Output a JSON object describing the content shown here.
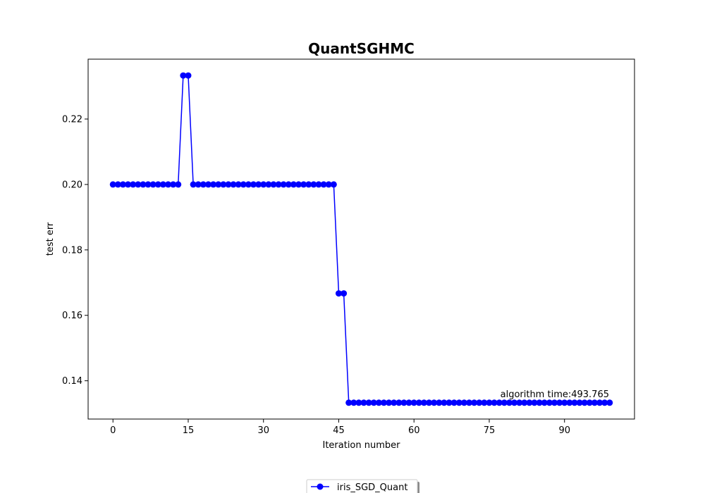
{
  "chart_data": {
    "type": "line",
    "title": "QuantSGHMC",
    "xlabel": "Iteration number",
    "ylabel": "test err",
    "xlim": [
      -4.95,
      103.95
    ],
    "ylim": [
      0.1283,
      0.2383
    ],
    "xticks": [
      0,
      15,
      30,
      45,
      60,
      75,
      90
    ],
    "yticks": [
      0.14,
      0.16,
      0.18,
      0.2,
      0.22
    ],
    "ytick_labels": [
      "0.14",
      "0.16",
      "0.18",
      "0.20",
      "0.22"
    ],
    "grid": false,
    "legend": {
      "placement": "bottom-center",
      "entries": [
        "iris_SGD_Quant"
      ]
    },
    "series": [
      {
        "name": "iris_SGD_Quant",
        "color": "#0000ff",
        "marker": "circle",
        "x": [
          0,
          1,
          2,
          3,
          4,
          5,
          6,
          7,
          8,
          9,
          10,
          11,
          12,
          13,
          14,
          15,
          16,
          17,
          18,
          19,
          20,
          21,
          22,
          23,
          24,
          25,
          26,
          27,
          28,
          29,
          30,
          31,
          32,
          33,
          34,
          35,
          36,
          37,
          38,
          39,
          40,
          41,
          42,
          43,
          44,
          45,
          46,
          47,
          48,
          49,
          50,
          51,
          52,
          53,
          54,
          55,
          56,
          57,
          58,
          59,
          60,
          61,
          62,
          63,
          64,
          65,
          66,
          67,
          68,
          69,
          70,
          71,
          72,
          73,
          74,
          75,
          76,
          77,
          78,
          79,
          80,
          81,
          82,
          83,
          84,
          85,
          86,
          87,
          88,
          89,
          90,
          91,
          92,
          93,
          94,
          95,
          96,
          97,
          98,
          99
        ],
        "y": [
          0.2,
          0.2,
          0.2,
          0.2,
          0.2,
          0.2,
          0.2,
          0.2,
          0.2,
          0.2,
          0.2,
          0.2,
          0.2,
          0.2,
          0.2333,
          0.2333,
          0.2,
          0.2,
          0.2,
          0.2,
          0.2,
          0.2,
          0.2,
          0.2,
          0.2,
          0.2,
          0.2,
          0.2,
          0.2,
          0.2,
          0.2,
          0.2,
          0.2,
          0.2,
          0.2,
          0.2,
          0.2,
          0.2,
          0.2,
          0.2,
          0.2,
          0.2,
          0.2,
          0.2,
          0.2,
          0.1667,
          0.1667,
          0.1333,
          0.1333,
          0.1333,
          0.1333,
          0.1333,
          0.1333,
          0.1333,
          0.1333,
          0.1333,
          0.1333,
          0.1333,
          0.1333,
          0.1333,
          0.1333,
          0.1333,
          0.1333,
          0.1333,
          0.1333,
          0.1333,
          0.1333,
          0.1333,
          0.1333,
          0.1333,
          0.1333,
          0.1333,
          0.1333,
          0.1333,
          0.1333,
          0.1333,
          0.1333,
          0.1333,
          0.1333,
          0.1333,
          0.1333,
          0.1333,
          0.1333,
          0.1333,
          0.1333,
          0.1333,
          0.1333,
          0.1333,
          0.1333,
          0.1333,
          0.1333,
          0.1333,
          0.1333,
          0.1333,
          0.1333,
          0.1333,
          0.1333,
          0.1333,
          0.1333,
          0.1333
        ]
      }
    ],
    "annotations": [
      {
        "text": "algorithm time:493.765",
        "x": 99,
        "y": 0.1333,
        "anchor": "end"
      }
    ]
  }
}
